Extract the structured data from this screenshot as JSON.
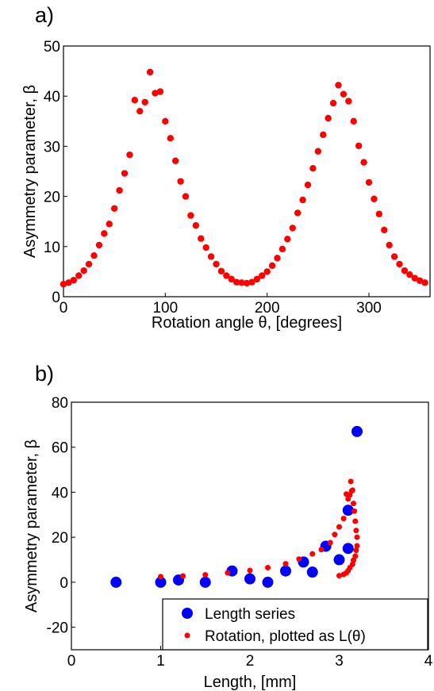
{
  "chart_data": [
    {
      "panel_label": "a)",
      "type": "scatter",
      "xlabel": "Rotation angle θ, [degrees]",
      "ylabel": "Asymmetry parameter, β",
      "xlim": [
        0,
        360
      ],
      "ylim": [
        0,
        50
      ],
      "xticks": [
        0,
        100,
        200,
        300
      ],
      "yticks": [
        0,
        10,
        20,
        30,
        40,
        50
      ],
      "series": [
        {
          "color": "#ff0000",
          "marker": "dot",
          "x": [
            0,
            5,
            10,
            15,
            20,
            25,
            30,
            35,
            40,
            45,
            50,
            55,
            60,
            65,
            70,
            75,
            80,
            85,
            90,
            95,
            100,
            105,
            110,
            115,
            120,
            125,
            130,
            135,
            140,
            145,
            150,
            155,
            160,
            165,
            170,
            175,
            180,
            185,
            190,
            195,
            200,
            205,
            210,
            215,
            220,
            225,
            230,
            235,
            240,
            245,
            250,
            255,
            260,
            265,
            270,
            275,
            280,
            285,
            290,
            295,
            300,
            305,
            310,
            315,
            320,
            325,
            330,
            335,
            340,
            345,
            350,
            355
          ],
          "y": [
            2.5,
            2.8,
            3.3,
            4.2,
            5.2,
            6.5,
            8.2,
            10.3,
            12.6,
            14.5,
            17.6,
            21.2,
            24.6,
            28.3,
            39.2,
            37.0,
            38.8,
            44.8,
            40.6,
            40.9,
            35.0,
            31.6,
            27.1,
            23.0,
            20.0,
            16.2,
            14.2,
            11.6,
            9.8,
            8.0,
            6.5,
            5.1,
            4.2,
            3.5,
            2.9,
            2.8,
            2.7,
            2.9,
            3.5,
            4.2,
            5.0,
            6.2,
            7.7,
            9.5,
            11.5,
            13.7,
            16.7,
            19.3,
            22.3,
            25.6,
            29.0,
            32.3,
            35.6,
            38.6,
            42.2,
            40.4,
            39.0,
            35.0,
            30.1,
            26.8,
            22.8,
            19.5,
            16.5,
            13.3,
            10.3,
            8.0,
            6.5,
            5.2,
            4.4,
            3.7,
            3.2,
            2.8
          ]
        }
      ]
    },
    {
      "panel_label": "b)",
      "type": "scatter",
      "xlabel": "Length, [mm]",
      "ylabel": "Asymmetry parameter, β",
      "xlim": [
        0,
        4
      ],
      "ylim": [
        -30,
        80
      ],
      "xticks": [
        0,
        1,
        2,
        3,
        4
      ],
      "yticks": [
        -20,
        0,
        20,
        40,
        60,
        80
      ],
      "legend_position": "bottom-right",
      "series": [
        {
          "name": "Length series",
          "color": "#0000ff",
          "marker": "large-dot",
          "x": [
            0.5,
            1.0,
            1.2,
            1.5,
            1.8,
            2.0,
            2.2,
            2.4,
            2.6,
            2.7,
            2.85,
            3.0,
            3.1,
            3.1,
            3.2
          ],
          "y": [
            0,
            0,
            1,
            0,
            5,
            1.5,
            0,
            5,
            9,
            4.5,
            16,
            10,
            15,
            32,
            67
          ]
        },
        {
          "name": "Rotation, plotted as L(θ)",
          "color": "#ff0000",
          "marker": "dot",
          "x": [
            1.0,
            1.25,
            1.5,
            1.75,
            2.0,
            2.2,
            2.4,
            2.55,
            2.7,
            2.8,
            2.9,
            2.95,
            3.0,
            3.05,
            3.08,
            3.1,
            3.12,
            3.13,
            3.14,
            3.15,
            3.16,
            3.17,
            3.18,
            3.19,
            3.2,
            3.2,
            3.19,
            3.18,
            3.16,
            3.15,
            3.12,
            3.1,
            3.08,
            3.05,
            3.0
          ],
          "y": [
            2.5,
            2.8,
            3.3,
            4.2,
            5.2,
            6.5,
            8.2,
            10.3,
            12.6,
            14.5,
            17.6,
            21.2,
            24.6,
            28.3,
            39.2,
            37.0,
            38.8,
            44.8,
            40.6,
            40.9,
            35.0,
            31.6,
            27.1,
            23.0,
            20.0,
            16.2,
            14.2,
            11.6,
            9.8,
            8.0,
            6.5,
            5.1,
            4.2,
            3.5,
            2.9
          ]
        }
      ]
    }
  ]
}
